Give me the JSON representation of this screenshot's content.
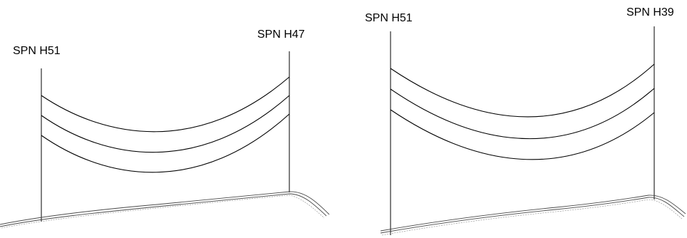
{
  "panels": [
    {
      "id": "left",
      "start_pole": {
        "label": "SPN H51"
      },
      "end_pole": {
        "label": "SPN H47"
      }
    },
    {
      "id": "right",
      "start_pole": {
        "label": "SPN H51"
      },
      "end_pole": {
        "label": "SPN H39"
      }
    }
  ]
}
